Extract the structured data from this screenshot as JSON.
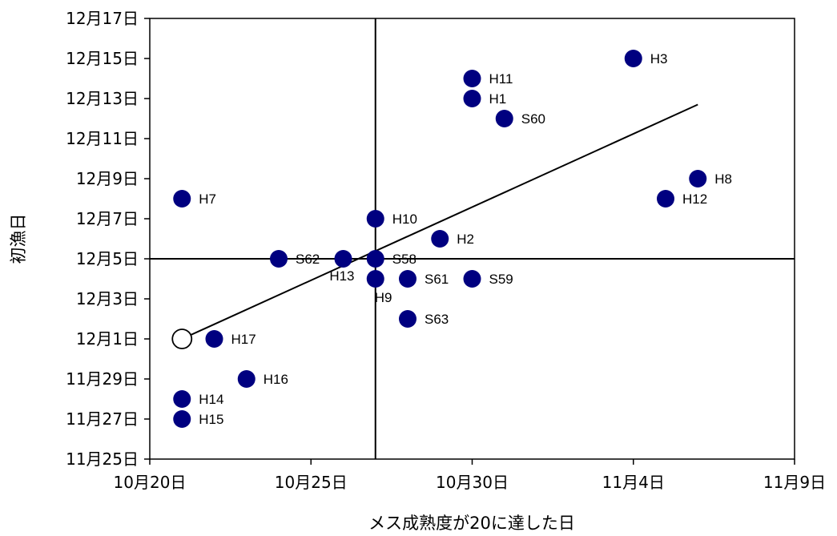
{
  "chart_data": {
    "type": "scatter",
    "title": "",
    "xlabel": "メス成熟度が20に達した日",
    "ylabel": "初漁日",
    "x_ticks": [
      {
        "v": 0,
        "label": "10月20日"
      },
      {
        "v": 5,
        "label": "10月25日"
      },
      {
        "v": 10,
        "label": "10月30日"
      },
      {
        "v": 15,
        "label": "11月4日"
      },
      {
        "v": 20,
        "label": "11月9日"
      }
    ],
    "y_ticks": [
      {
        "v": 0,
        "label": "11月25日"
      },
      {
        "v": 2,
        "label": "11月27日"
      },
      {
        "v": 4,
        "label": "11月29日"
      },
      {
        "v": 6,
        "label": "12月1日"
      },
      {
        "v": 8,
        "label": "12月3日"
      },
      {
        "v": 10,
        "label": "12月5日"
      },
      {
        "v": 12,
        "label": "12月7日"
      },
      {
        "v": 14,
        "label": "12月9日"
      },
      {
        "v": 16,
        "label": "12月11日"
      },
      {
        "v": 18,
        "label": "12月13日"
      },
      {
        "v": 20,
        "label": "12月15日"
      },
      {
        "v": 22,
        "label": "12月17日"
      }
    ],
    "xlim": [
      0,
      20
    ],
    "ylim": [
      0,
      22
    ],
    "grid": false,
    "legend": "none",
    "point_color": "#000080",
    "points": [
      {
        "label": "H3",
        "x": 15,
        "y": 20,
        "label_pos": "right"
      },
      {
        "label": "H11",
        "x": 10,
        "y": 19,
        "label_pos": "right"
      },
      {
        "label": "H1",
        "x": 10,
        "y": 18,
        "label_pos": "right"
      },
      {
        "label": "S60",
        "x": 11,
        "y": 17,
        "label_pos": "right"
      },
      {
        "label": "H8",
        "x": 17,
        "y": 14,
        "label_pos": "right"
      },
      {
        "label": "H12",
        "x": 16,
        "y": 13,
        "label_pos": "right"
      },
      {
        "label": "H7",
        "x": 1,
        "y": 13,
        "label_pos": "right"
      },
      {
        "label": "H10",
        "x": 7,
        "y": 12,
        "label_pos": "right"
      },
      {
        "label": "H2",
        "x": 9,
        "y": 11,
        "label_pos": "right"
      },
      {
        "label": "S62",
        "x": 4,
        "y": 10,
        "label_pos": "right"
      },
      {
        "label": "H13",
        "x": 6,
        "y": 10,
        "label_pos": "below-left"
      },
      {
        "label": "S58",
        "x": 7,
        "y": 10,
        "label_pos": "right"
      },
      {
        "label": "H9",
        "x": 7,
        "y": 9,
        "label_pos": "below"
      },
      {
        "label": "S61",
        "x": 8,
        "y": 9,
        "label_pos": "right"
      },
      {
        "label": "S59",
        "x": 10,
        "y": 9,
        "label_pos": "right"
      },
      {
        "label": "S63",
        "x": 8,
        "y": 7,
        "label_pos": "right"
      },
      {
        "label": "H17",
        "x": 2,
        "y": 6,
        "label_pos": "right"
      },
      {
        "label": "H16",
        "x": 3,
        "y": 4,
        "label_pos": "right"
      },
      {
        "label": "H14",
        "x": 1,
        "y": 3,
        "label_pos": "right"
      },
      {
        "label": "H15",
        "x": 1,
        "y": 2,
        "label_pos": "right"
      }
    ],
    "open_point": {
      "x": 1,
      "y": 6
    },
    "trendline": {
      "x1": 1,
      "y1": 6,
      "x2": 17,
      "y2": 17.7
    },
    "ref_lines": {
      "x": 7,
      "y": 10
    }
  }
}
